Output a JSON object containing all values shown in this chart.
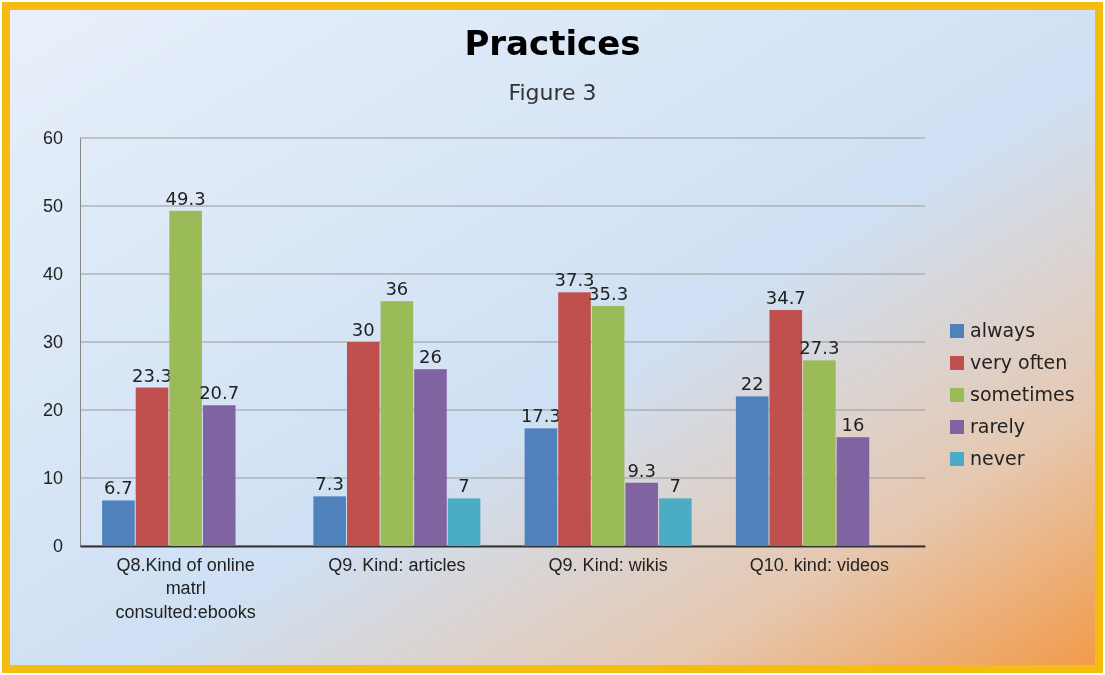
{
  "chart_data": {
    "type": "bar",
    "title": "Practices",
    "subtitle": "Figure 3",
    "categories": [
      "Q8.Kind of online matrl consulted:ebooks",
      "Q9. Kind: articles",
      "Q9. Kind: wikis",
      "Q10. kind: videos"
    ],
    "series": [
      {
        "name": "always",
        "color": "#4f81bd",
        "values": [
          6.7,
          7.3,
          17.3,
          22
        ]
      },
      {
        "name": "very often",
        "color": "#c0504d",
        "values": [
          23.3,
          30,
          37.3,
          34.7
        ]
      },
      {
        "name": "sometimes",
        "color": "#9bbb59",
        "values": [
          49.3,
          36,
          35.3,
          27.3
        ]
      },
      {
        "name": "rarely",
        "color": "#8064a2",
        "values": [
          20.7,
          26,
          9.3,
          16
        ]
      },
      {
        "name": "never",
        "color": "#4bacc6",
        "values": [
          null,
          7,
          7,
          null
        ]
      }
    ],
    "ylim": [
      0,
      60
    ],
    "yticks": [
      0,
      10,
      20,
      30,
      40,
      50,
      60
    ],
    "grid": "y",
    "legend": "right",
    "data_labels": true
  }
}
